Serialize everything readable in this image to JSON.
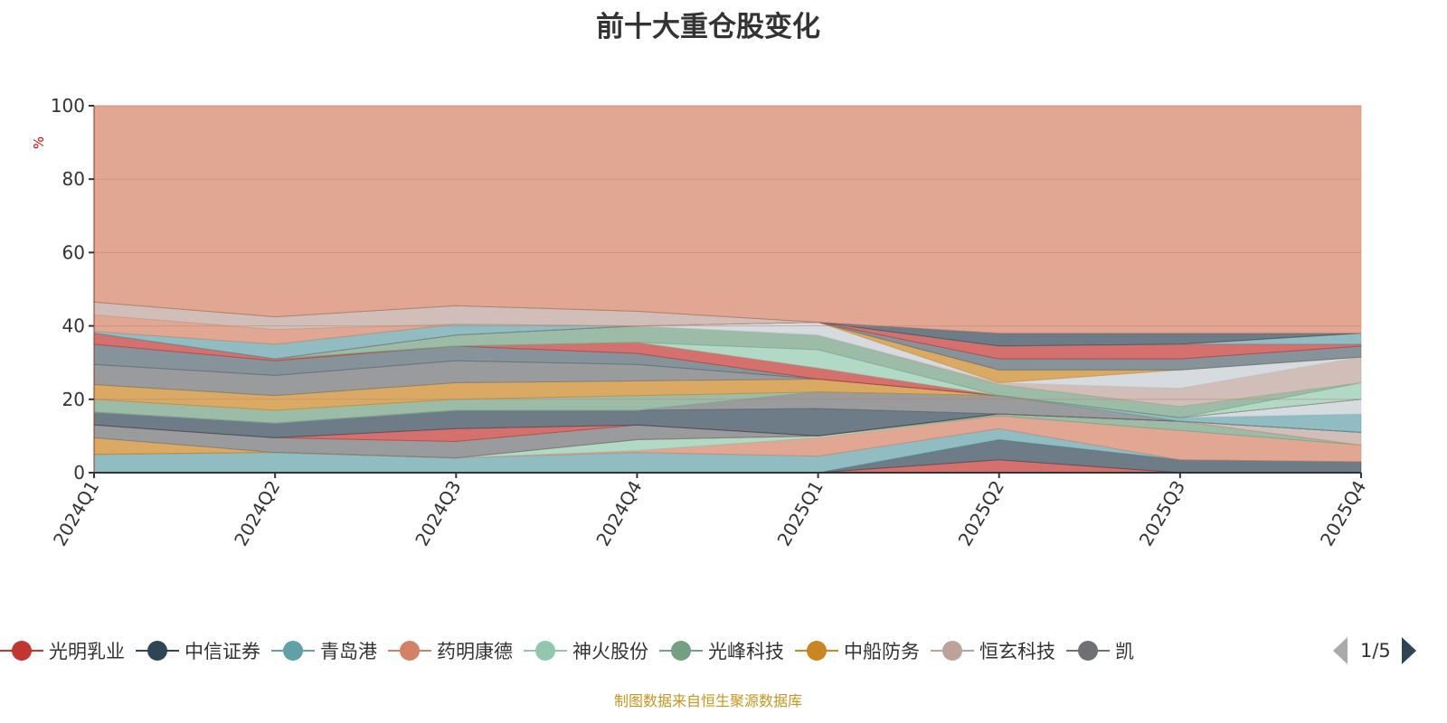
{
  "chart_data": {
    "type": "area",
    "stacked": true,
    "title": "前十大重仓股变化",
    "ylabel": "%",
    "xlabel": "",
    "ylim": [
      0,
      100
    ],
    "yticks": [
      "0",
      "20",
      "40",
      "60",
      "80",
      "100"
    ],
    "categories": [
      "2024Q1",
      "2024Q2",
      "2024Q3",
      "2024Q4",
      "2025Q1",
      "2025Q2",
      "2025Q3",
      "2025Q4"
    ],
    "grid": true,
    "remainder_color": "#d48265",
    "series": [
      {
        "name": "光明乳业",
        "color": "#c23531",
        "values": [
          0,
          0,
          0,
          0,
          0,
          3.5,
          0,
          0
        ]
      },
      {
        "name": "中信证券",
        "color": "#2f4554",
        "values": [
          0,
          0,
          0,
          0,
          0,
          5.5,
          3.5,
          3
        ]
      },
      {
        "name": "青岛港",
        "color": "#61a0a8",
        "values": [
          5,
          5.5,
          4,
          5.5,
          4.5,
          3,
          0,
          0
        ]
      },
      {
        "name": "药明康德",
        "color": "#d48265",
        "values": [
          0,
          0,
          0,
          0.5,
          5,
          3.5,
          8,
          4.5
        ]
      },
      {
        "name": "神火股份",
        "color": "#91c7ae",
        "values": [
          0,
          0,
          0,
          3,
          0.5,
          0,
          0,
          0
        ]
      },
      {
        "name": "光峰科技",
        "color": "#749f83",
        "values": [
          0,
          0,
          0,
          0,
          0,
          0.5,
          2.5,
          0
        ]
      },
      {
        "name": "中船防务",
        "color": "#ca8622",
        "values": [
          4.5,
          0,
          0,
          0,
          0,
          0,
          0,
          0
        ]
      },
      {
        "name": "恒玄科技",
        "color": "#bda29a",
        "values": [
          0,
          0,
          0,
          0,
          0,
          0,
          0,
          3.5
        ]
      },
      {
        "name": "凯",
        "color": "#6e7074",
        "values": [
          3.5,
          4,
          4.5,
          4,
          0,
          0,
          0,
          0
        ]
      },
      {
        "color": "#c23531",
        "values": [
          0,
          0,
          3.5,
          0,
          0,
          0,
          0,
          0
        ]
      },
      {
        "color": "#2f4554",
        "values": [
          3.5,
          4,
          5,
          4,
          7.5,
          0,
          0,
          0
        ]
      },
      {
        "color": "#6e7074",
        "values": [
          0,
          0,
          0,
          0,
          4.5,
          5,
          0,
          0
        ]
      },
      {
        "color": "#61a0a8",
        "values": [
          0,
          0,
          0,
          0,
          0,
          0,
          1,
          5
        ]
      },
      {
        "color": "#c4ccd3",
        "values": [
          0,
          0,
          0,
          0,
          0,
          0,
          0,
          4
        ]
      },
      {
        "color": "#749f83",
        "values": [
          3.5,
          3.5,
          3,
          4,
          0,
          0,
          0,
          0
        ]
      },
      {
        "color": "#ca8622",
        "values": [
          4,
          4,
          4.5,
          4,
          3.5,
          0,
          0,
          0
        ]
      },
      {
        "color": "#6e7074",
        "values": [
          5.5,
          5.5,
          6,
          4.5,
          0,
          0,
          0,
          0
        ]
      },
      {
        "color": "#546570",
        "values": [
          5.5,
          4,
          4,
          3,
          0,
          0,
          0,
          0
        ]
      },
      {
        "color": "#c23531",
        "values": [
          3,
          0.5,
          0,
          3,
          3,
          0,
          0,
          0
        ]
      },
      {
        "color": "#91c7ae",
        "values": [
          0,
          0,
          0,
          0,
          5,
          0,
          0,
          4.5
        ]
      },
      {
        "color": "#749f83",
        "values": [
          0,
          0,
          3,
          4.5,
          4,
          3,
          3,
          0
        ]
      },
      {
        "color": "#bda29a",
        "values": [
          0,
          0,
          0,
          0,
          0,
          0.5,
          5,
          7
        ]
      },
      {
        "color": "#c4ccd3",
        "values": [
          0,
          0,
          0,
          0,
          3.5,
          0,
          5,
          0
        ]
      },
      {
        "color": "#ca8622",
        "values": [
          0,
          0,
          0,
          0,
          0,
          3.5,
          0,
          0
        ]
      },
      {
        "color": "#546570",
        "values": [
          0,
          0,
          0,
          0,
          0,
          3,
          3,
          3
        ]
      },
      {
        "color": "#c23531",
        "values": [
          0,
          0,
          0,
          0,
          0,
          3.5,
          4,
          0.5
        ]
      },
      {
        "color": "#61a0a8",
        "values": [
          0.5,
          4,
          3,
          0,
          0,
          0,
          0,
          3
        ]
      },
      {
        "color": "#d48265",
        "values": [
          4.5,
          4,
          0,
          0,
          0,
          0,
          0,
          0
        ]
      },
      {
        "color": "#bda29a",
        "values": [
          3.5,
          3.5,
          5,
          4,
          0,
          0,
          0,
          0
        ]
      },
      {
        "color": "#2f4554",
        "values": [
          0,
          0,
          0,
          0,
          0,
          3.5,
          3,
          0
        ]
      }
    ]
  },
  "legend": {
    "items": [
      "光明乳业",
      "中信证券",
      "青岛港",
      "药明康德",
      "神火股份",
      "光峰科技",
      "中船防务",
      "恒玄科技",
      "凯"
    ],
    "colors": [
      "#c23531",
      "#2f4554",
      "#61a0a8",
      "#d48265",
      "#91c7ae",
      "#749f83",
      "#ca8622",
      "#bda29a",
      "#6e7074"
    ],
    "page": "1/5"
  },
  "footer": "制图数据来自恒生聚源数据库"
}
